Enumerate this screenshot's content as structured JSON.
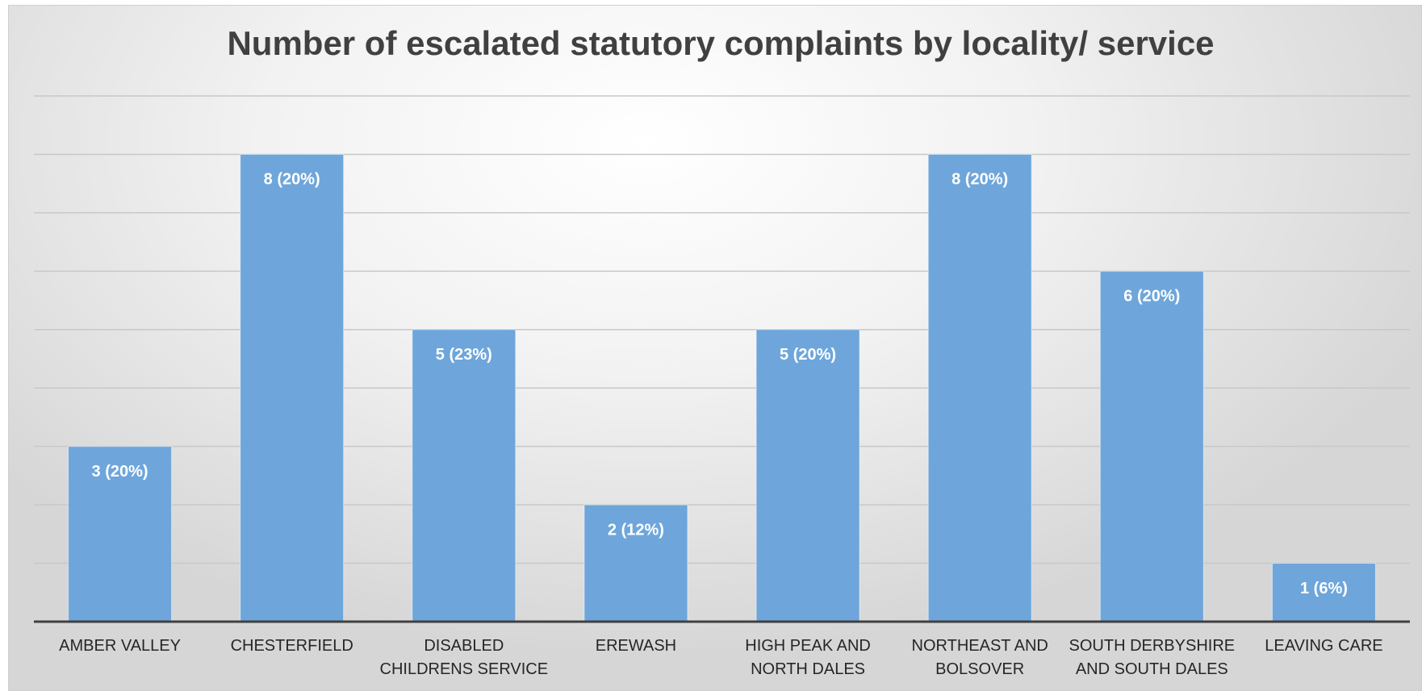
{
  "chart_data": {
    "type": "bar",
    "title": "Number of escalated statutory complaints by locality/ service",
    "categories": [
      "AMBER VALLEY",
      "CHESTERFIELD",
      "DISABLED CHILDRENS SERVICE",
      "EREWASH",
      "HIGH PEAK AND NORTH DALES",
      "NORTHEAST AND BOLSOVER",
      "SOUTH DERBYSHIRE AND SOUTH DALES",
      "LEAVING CARE"
    ],
    "values": [
      3,
      8,
      5,
      2,
      5,
      8,
      6,
      1
    ],
    "value_labels": [
      "3 (20%)",
      "8 (20%)",
      "5 (23%)",
      "2 (12%)",
      "5 (20%)",
      "8 (20%)",
      "6 (20%)",
      "1 (6%)"
    ],
    "color": "#6ea6db",
    "ylim": [
      0,
      9
    ],
    "yticks": [
      0,
      1,
      2,
      3,
      4,
      5,
      6,
      7,
      8,
      9
    ],
    "grid": true
  }
}
